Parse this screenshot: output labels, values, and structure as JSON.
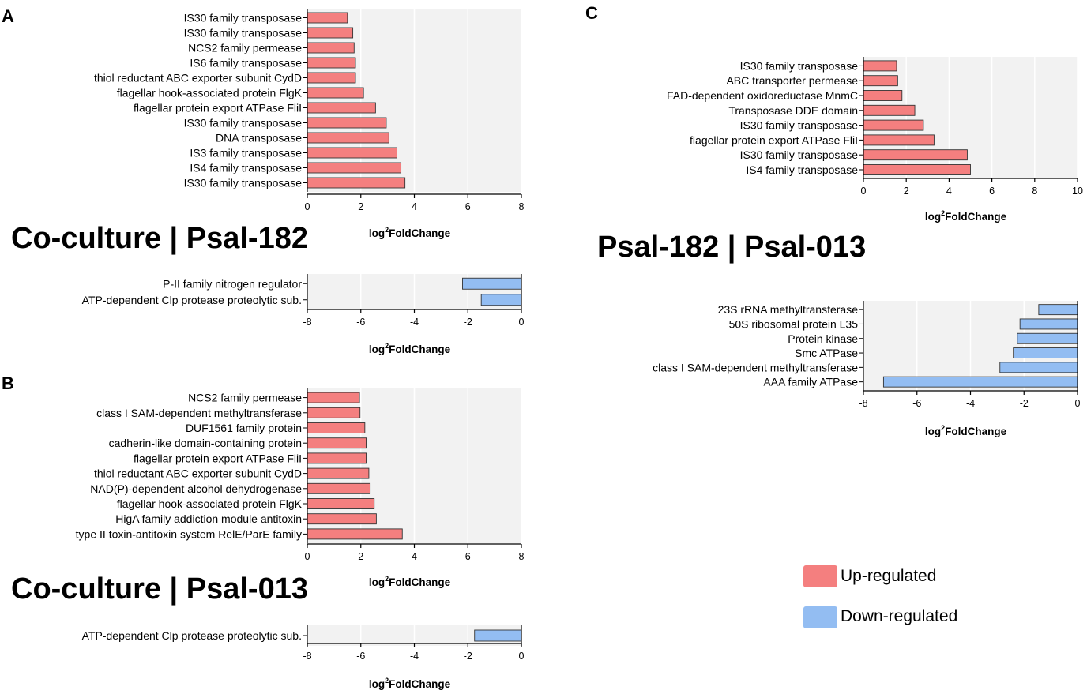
{
  "colors": {
    "up": "#F47F7F",
    "down": "#93BDF2",
    "plot_bg": "#F2F2F2"
  },
  "axis_label": {
    "main": "log",
    "sup": "2",
    "rest": "FoldChange"
  },
  "legend": {
    "up": "Up-regulated",
    "down": "Down-regulated"
  },
  "panels": [
    {
      "letter": "A",
      "title": "Co-culture | Psal-182"
    },
    {
      "letter": "B",
      "title": "Co-culture | Psal-013"
    },
    {
      "letter": "C",
      "title": "Psal-182 | Psal-013"
    }
  ],
  "chart_data": [
    {
      "id": "A-up",
      "panel": "A",
      "type": "bar",
      "orientation": "horizontal",
      "direction": "up",
      "categories": [
        "IS30 family transposase",
        "IS30 family transposase",
        "NCS2 family permease",
        "IS6 family transposase",
        "thiol reductant ABC exporter subunit CydD",
        "flagellar hook-associated protein FlgK",
        "flagellar protein export ATPase FliI",
        "IS30 family transposase",
        "DNA transposase",
        "IS3 family transposase",
        "IS4 family transposase",
        "IS30 family transposase"
      ],
      "values": [
        1.5,
        1.7,
        1.75,
        1.8,
        1.8,
        2.1,
        2.55,
        2.95,
        3.05,
        3.35,
        3.5,
        3.65
      ],
      "xlim": [
        0,
        8
      ],
      "xticks": [
        0,
        2,
        4,
        6,
        8
      ],
      "xlabel": "log2FoldChange"
    },
    {
      "id": "A-down",
      "panel": "A",
      "type": "bar",
      "orientation": "horizontal",
      "direction": "down",
      "categories": [
        "P-II family nitrogen regulator",
        "ATP-dependent Clp protease proteolytic sub."
      ],
      "values": [
        -2.2,
        -1.5
      ],
      "xlim": [
        -8,
        0
      ],
      "xticks": [
        -8,
        -6,
        -4,
        -2,
        0
      ],
      "xlabel": "log2FoldChange"
    },
    {
      "id": "B-up",
      "panel": "B",
      "type": "bar",
      "orientation": "horizontal",
      "direction": "up",
      "categories": [
        "NCS2 family permease",
        "class I SAM-dependent methyltransferase",
        "DUF1561 family protein",
        "cadherin-like domain-containing protein",
        "flagellar protein export ATPase FliI",
        "thiol reductant ABC exporter subunit CydD",
        "NAD(P)-dependent alcohol dehydrogenase",
        "flagellar hook-associated protein FlgK",
        "HigA family addiction module antitoxin",
        "type II toxin-antitoxin system RelE/ParE family"
      ],
      "values": [
        1.95,
        1.97,
        2.15,
        2.2,
        2.2,
        2.3,
        2.35,
        2.5,
        2.58,
        3.55
      ],
      "xlim": [
        0,
        8
      ],
      "xticks": [
        0,
        2,
        4,
        6,
        8
      ],
      "xlabel": "log2FoldChange"
    },
    {
      "id": "B-down",
      "panel": "B",
      "type": "bar",
      "orientation": "horizontal",
      "direction": "down",
      "categories": [
        "ATP-dependent Clp protease proteolytic sub."
      ],
      "values": [
        -1.75
      ],
      "xlim": [
        -8,
        0
      ],
      "xticks": [
        -8,
        -6,
        -4,
        -2,
        0
      ],
      "xlabel": "log2FoldChange"
    },
    {
      "id": "C-up",
      "panel": "C",
      "type": "bar",
      "orientation": "horizontal",
      "direction": "up",
      "categories": [
        "IS30 family transposase",
        "ABC transporter permease",
        "FAD-dependent oxidoreductase MnmC",
        "Transposase DDE domain",
        "IS30 family transposase",
        "flagellar protein export ATPase FliI",
        "IS30 family transposase",
        "IS4 family transposase"
      ],
      "values": [
        1.55,
        1.6,
        1.8,
        2.4,
        2.8,
        3.3,
        4.85,
        5.0
      ],
      "xlim": [
        0,
        10
      ],
      "xticks": [
        0,
        2,
        4,
        6,
        8,
        10
      ],
      "xlabel": "log2FoldChange"
    },
    {
      "id": "C-down",
      "panel": "C",
      "type": "bar",
      "orientation": "horizontal",
      "direction": "down",
      "categories": [
        "23S rRNA methyltransferase",
        "50S ribosomal protein L35",
        "Protein kinase",
        "Smc ATPase",
        "class I SAM-dependent methyltransferase",
        "AAA family ATPase"
      ],
      "values": [
        -1.45,
        -2.15,
        -2.25,
        -2.4,
        -2.9,
        -7.25
      ],
      "xlim": [
        -8,
        0
      ],
      "xticks": [
        -8,
        -6,
        -4,
        -2,
        0
      ],
      "xlabel": "log2FoldChange"
    }
  ]
}
